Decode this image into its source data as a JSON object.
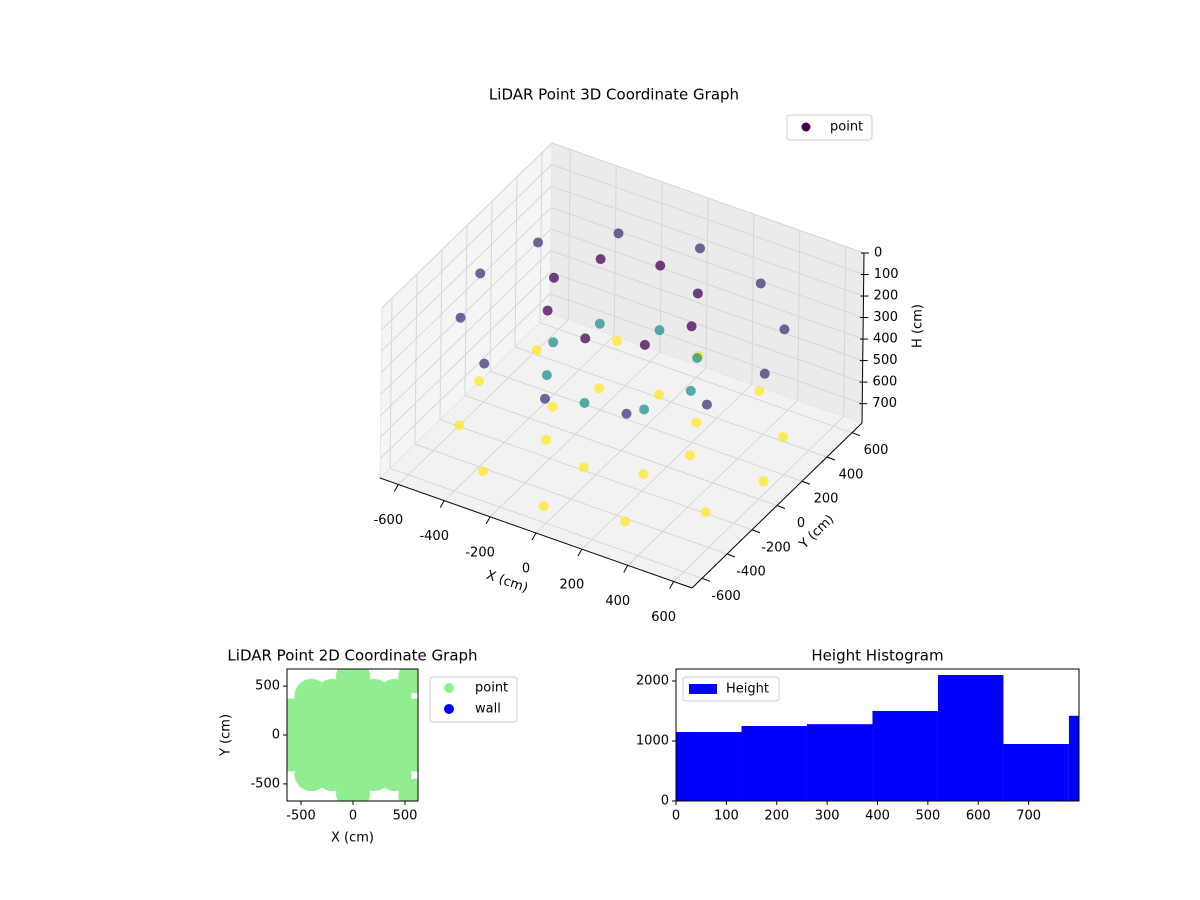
{
  "chart_data": [
    {
      "type": "scatter3d",
      "title": "LiDAR Point 3D Coordinate Graph",
      "x_label": "X (cm)",
      "y_label": "Y (cm)",
      "z_label": "H (cm)",
      "xlim": [
        -680,
        680
      ],
      "ylim": [
        -680,
        680
      ],
      "zlim": [
        790,
        0
      ],
      "xticks": [
        -600,
        -400,
        -200,
        0,
        200,
        400,
        600
      ],
      "yticks": [
        -600,
        -400,
        -200,
        0,
        200,
        400,
        600
      ],
      "zticks": [
        0,
        100,
        200,
        300,
        400,
        500,
        600,
        700
      ],
      "colormap": "viridis",
      "grid": true,
      "legend": "upper right",
      "series": [
        {
          "name": "point",
          "color": "#440154",
          "x": [
            620,
            537,
            310,
            0,
            -310,
            -537,
            -620,
            -537,
            -310,
            0,
            310,
            537,
            620,
            537,
            310,
            0,
            -310,
            -537,
            -620,
            -537,
            -310,
            0,
            310,
            537,
            300,
            212,
            0,
            -212,
            -300,
            -212,
            0,
            212,
            300,
            212,
            0,
            -212,
            -300,
            -212,
            0,
            212,
            300,
            212,
            0,
            -212,
            -300,
            -212,
            0,
            212
          ],
          "y": [
            0,
            310,
            537,
            620,
            537,
            310,
            0,
            -310,
            -537,
            -620,
            -537,
            -310,
            0,
            310,
            537,
            620,
            537,
            310,
            0,
            -310,
            -537,
            -620,
            -537,
            -310,
            0,
            212,
            300,
            212,
            0,
            -212,
            -300,
            -212,
            0,
            212,
            300,
            212,
            0,
            -212,
            -300,
            -212,
            0,
            212,
            300,
            212,
            0,
            -212,
            -300,
            -212
          ],
          "z": [
            200,
            200,
            200,
            200,
            200,
            200,
            200,
            200,
            200,
            200,
            200,
            200,
            700,
            700,
            700,
            700,
            700,
            700,
            700,
            700,
            700,
            700,
            700,
            700,
            100,
            100,
            100,
            100,
            100,
            100,
            100,
            100,
            400,
            400,
            400,
            400,
            400,
            400,
            400,
            400,
            700,
            700,
            700,
            700,
            700,
            700,
            700,
            700
          ]
        }
      ]
    },
    {
      "type": "scatter",
      "title": "LiDAR Point 2D Coordinate Graph",
      "x_label": "X (cm)",
      "y_label": "Y (cm)",
      "xlim": [
        -635,
        625
      ],
      "ylim": [
        -675,
        675
      ],
      "xticks": [
        -500,
        0,
        500
      ],
      "yticks": [
        -500,
        0,
        500
      ],
      "legend": "outside right",
      "series": [
        {
          "name": "point",
          "color": "#90ee90",
          "x": [
            0,
            200,
            -200,
            400,
            -400,
            600,
            -600,
            0,
            0,
            0,
            0,
            0,
            0,
            200,
            200,
            -200,
            -200,
            400,
            400,
            -400,
            -400,
            200,
            200,
            -200,
            -200,
            400,
            400,
            -400,
            -400,
            600,
            600,
            -600,
            -600,
            600,
            600
          ],
          "y": [
            0,
            0,
            0,
            0,
            0,
            0,
            0,
            200,
            -200,
            400,
            -400,
            600,
            -600,
            200,
            -200,
            200,
            -200,
            200,
            -200,
            200,
            -200,
            400,
            -400,
            400,
            -400,
            400,
            -400,
            400,
            -400,
            200,
            -200,
            200,
            -200,
            600,
            -620
          ]
        },
        {
          "name": "wall",
          "color": "#0000ff",
          "x": [],
          "y": []
        }
      ]
    },
    {
      "type": "histogram",
      "title": "Height Histogram",
      "bins": [
        0,
        130,
        260,
        390,
        520,
        650,
        780,
        800
      ],
      "values": [
        1150,
        1250,
        1280,
        1500,
        2100,
        950,
        1420
      ],
      "xlim": [
        0,
        800
      ],
      "ylim": [
        0,
        2200
      ],
      "xticks": [
        0,
        100,
        200,
        300,
        400,
        500,
        600,
        700
      ],
      "yticks": [
        0,
        1000,
        2000
      ],
      "legend": "upper left",
      "series_name": "Height",
      "color": "#0000ff"
    }
  ]
}
